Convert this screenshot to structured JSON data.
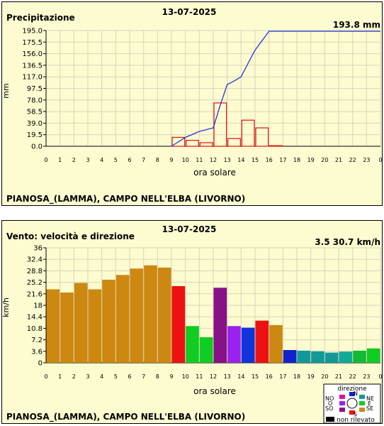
{
  "chart_data": [
    {
      "type": "bar",
      "title": "Precipitazione",
      "date": "13-07-2025",
      "summary": "193.8 mm",
      "ylabel": "mm",
      "xlabel": "ora solare",
      "station": "PIANOSA_(LAMMA), CAMPO NELL'ELBA (LIVORNO)",
      "ylim": [
        0,
        195
      ],
      "yticks": [
        "0.0",
        "19.5",
        "39.0",
        "58.5",
        "78.0",
        "97.5",
        "117.0",
        "136.5",
        "156.0",
        "175.5",
        "195.0"
      ],
      "x_tick_labels": [
        "0",
        "1",
        "2",
        "3",
        "4",
        "5",
        "6",
        "7",
        "8",
        "9",
        "10",
        "11",
        "12",
        "13",
        "14",
        "15",
        "16",
        "17",
        "18",
        "19",
        "20",
        "21",
        "22",
        "23",
        "0"
      ],
      "grid": true,
      "hourly_mm": [
        0,
        0,
        0,
        0,
        0,
        0,
        0,
        0,
        0,
        15,
        10,
        6,
        73,
        13,
        44,
        31,
        1,
        0,
        0,
        0,
        0,
        0,
        0,
        0
      ],
      "cumulative_line": {
        "x": [
          9,
          10,
          11,
          12,
          12.5,
          13,
          13.5,
          14,
          14.5,
          15,
          16,
          17,
          18,
          19,
          20,
          21,
          22,
          23,
          24
        ],
        "y": [
          0,
          15,
          25,
          31,
          69,
          104,
          110,
          117,
          140,
          162,
          193.8,
          193.8,
          193.8,
          193.8,
          193.8,
          193.8,
          193.8,
          193.8,
          193.8
        ]
      },
      "bar_color": "#dd1111",
      "line_color": "#2233dd"
    },
    {
      "type": "bar",
      "title": "Vento: velocità e direzione",
      "date": "13-07-2025",
      "summary": "3.5  30.7 km/h",
      "ylabel": "km/h",
      "xlabel": "ora solare",
      "station": "PIANOSA_(LAMMA), CAMPO NELL'ELBA (LIVORNO)",
      "ylim": [
        0,
        36
      ],
      "yticks": [
        "0",
        "3.6",
        "7.2",
        "10.8",
        "14.4",
        "18",
        "21.6",
        "25.2",
        "28.8",
        "32.4",
        "36"
      ],
      "x_tick_labels": [
        "0",
        "1",
        "2",
        "3",
        "4",
        "5",
        "6",
        "7",
        "8",
        "9",
        "10",
        "11",
        "12",
        "13",
        "14",
        "15",
        "16",
        "17",
        "18",
        "19",
        "20",
        "21",
        "22",
        "23",
        "0"
      ],
      "grid": true,
      "values": [
        23,
        22,
        25,
        23,
        26,
        27.5,
        29.5,
        30.5,
        29.8,
        24,
        11.5,
        8,
        23.5,
        11.5,
        11,
        13.2,
        11.8,
        4,
        3.8,
        3.6,
        3.2,
        3.5,
        3.8,
        4.5
      ],
      "colors": [
        "#cc8811",
        "#cc8811",
        "#cc8811",
        "#cc8811",
        "#cc8811",
        "#cc8811",
        "#cc8811",
        "#cc8811",
        "#cc8811",
        "#ee1111",
        "#11cc22",
        "#11cc22",
        "#881188",
        "#9922ee",
        "#1133dd",
        "#ee1111",
        "#cc8811",
        "#1122cc",
        "#119999",
        "#119999",
        "#119999",
        "#11aa99",
        "#11bb33",
        "#11cc22"
      ],
      "legend": {
        "title": "direzione",
        "labels": [
          "N",
          "NE",
          "E",
          "SE",
          "S",
          "SO",
          "O",
          "NO"
        ],
        "colors": [
          "#1122cc",
          "#119999",
          "#11cc22",
          "#cc8811",
          "#ee1111",
          "#881188",
          "#9922ee",
          "#dd1199"
        ],
        "no_data_label": "non rilevato",
        "no_data_color": "#000000"
      }
    }
  ]
}
